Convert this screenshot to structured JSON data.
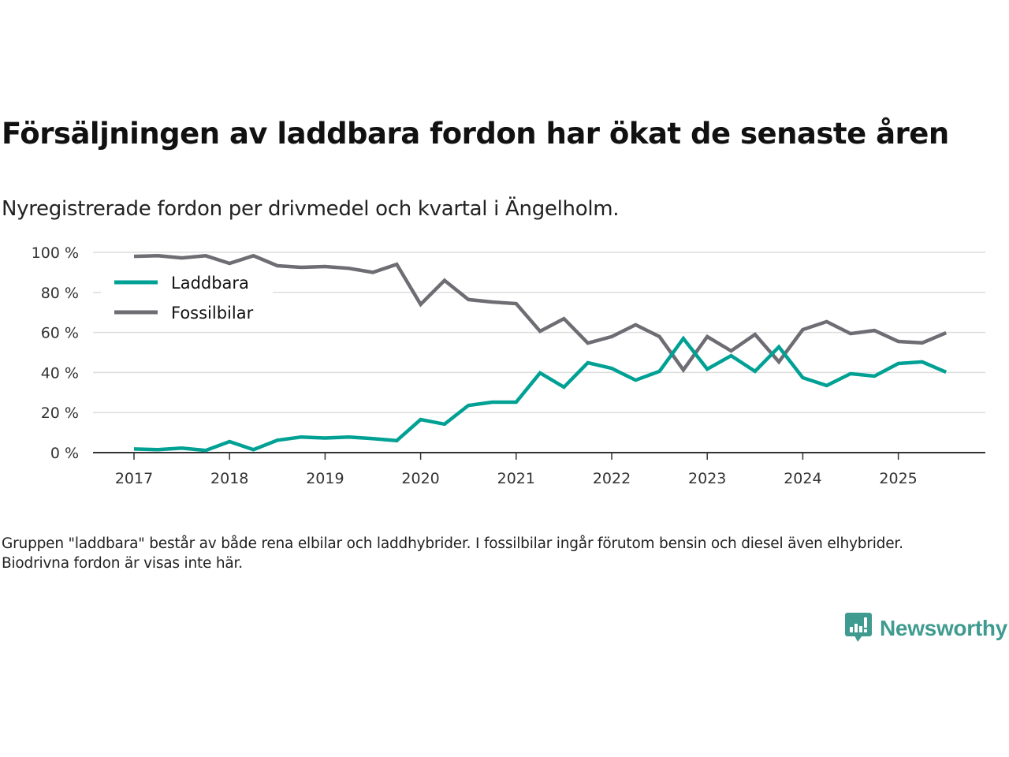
{
  "header": {
    "title": "Försäljningen av laddbara fordon har ökat de senaste åren",
    "subtitle": "Nyregistrerade fordon per drivmedel och kvartal i Ängelholm."
  },
  "note": "Gruppen \"laddbara\" består av både rena elbilar och laddhybrider. I fossilbilar ingår förutom bensin och diesel även elhybrider. Biodrivna fordon är visas inte här.",
  "brand": {
    "name": "Newsworthy",
    "icon": "bar-chart-speech-bubble-icon",
    "color": "#3f9b8f"
  },
  "chart_data": {
    "type": "line",
    "title": "Försäljningen av laddbara fordon har ökat de senaste åren",
    "subtitle": "Nyregistrerade fordon per drivmedel och kvartal i Ängelholm.",
    "xlabel": "",
    "ylabel": "",
    "x": [
      "2017-Q1",
      "2017-Q2",
      "2017-Q3",
      "2017-Q4",
      "2018-Q1",
      "2018-Q2",
      "2018-Q3",
      "2018-Q4",
      "2019-Q1",
      "2019-Q2",
      "2019-Q3",
      "2019-Q4",
      "2020-Q1",
      "2020-Q2",
      "2020-Q3",
      "2020-Q4",
      "2021-Q1",
      "2021-Q2",
      "2021-Q3",
      "2021-Q4",
      "2022-Q1",
      "2022-Q2",
      "2022-Q3",
      "2022-Q4",
      "2023-Q1",
      "2023-Q2",
      "2023-Q3",
      "2023-Q4",
      "2024-Q1",
      "2024-Q2",
      "2024-Q3",
      "2024-Q4",
      "2025-Q1",
      "2025-Q2",
      "2025-Q3"
    ],
    "x_ticks": [
      "2017",
      "2018",
      "2019",
      "2020",
      "2021",
      "2022",
      "2023",
      "2024",
      "2025"
    ],
    "y_ticks": [
      0,
      20,
      40,
      60,
      80,
      100
    ],
    "y_tick_labels": [
      "0 %",
      "20 %",
      "40 %",
      "60 %",
      "80 %",
      "100 %"
    ],
    "ylim": [
      0,
      100
    ],
    "grid": "horizontal",
    "legend_position": "top-left",
    "series": [
      {
        "name": "Laddbara",
        "color": "#00a194",
        "values": [
          1.8,
          1.5,
          2.3,
          1.1,
          5.5,
          1.5,
          6.2,
          7.8,
          7.3,
          7.8,
          7.0,
          6.0,
          16.5,
          14.2,
          23.6,
          25.2,
          25.2,
          39.8,
          32.7,
          44.9,
          42.1,
          36.2,
          40.6,
          57.0,
          41.7,
          48.4,
          40.6,
          52.8,
          37.4,
          33.5,
          39.4,
          38.2,
          44.5,
          45.3,
          40.2
        ]
      },
      {
        "name": "Fossilbilar",
        "color": "#6e6d73",
        "values": [
          98.0,
          98.3,
          97.2,
          98.3,
          94.5,
          98.3,
          93.3,
          92.5,
          92.9,
          92.0,
          90.0,
          94.0,
          74.0,
          86.0,
          76.4,
          75.2,
          74.4,
          60.6,
          66.9,
          54.7,
          57.9,
          63.8,
          57.9,
          41.3,
          57.9,
          50.8,
          59.0,
          45.3,
          61.4,
          65.4,
          59.4,
          61.0,
          55.5,
          54.8,
          59.8
        ]
      }
    ]
  }
}
